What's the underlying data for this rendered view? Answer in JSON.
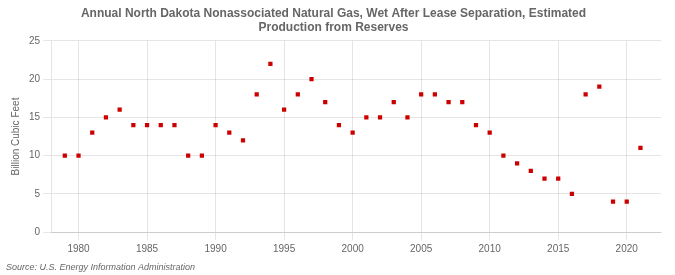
{
  "chart_data": {
    "type": "scatter",
    "title": "Annual North Dakota Nonassociated Natural Gas, Wet After Lease Separation, Estimated\nProduction from Reserves",
    "ylabel": "Billion Cubic Feet",
    "annotation": "Source: U.S. Energy Information Administration",
    "x": [
      1979,
      1980,
      1981,
      1982,
      1983,
      1984,
      1985,
      1986,
      1987,
      1988,
      1989,
      1990,
      1991,
      1992,
      1993,
      1994,
      1995,
      1996,
      1997,
      1998,
      1999,
      2000,
      2001,
      2002,
      2003,
      2004,
      2005,
      2006,
      2007,
      2008,
      2009,
      2010,
      2011,
      2012,
      2013,
      2014,
      2015,
      2016,
      2017,
      2018,
      2019,
      2020,
      2021
    ],
    "values": [
      10,
      10,
      13,
      15,
      16,
      14,
      14,
      14,
      14,
      10,
      10,
      14,
      13,
      12,
      18,
      22,
      16,
      18,
      20,
      17,
      14,
      13,
      15,
      15,
      17,
      15,
      18,
      18,
      17,
      17,
      14,
      13,
      10,
      9,
      8,
      7,
      7,
      5,
      18,
      19,
      4,
      4,
      11
    ],
    "color": "#cc0000",
    "marker": "square",
    "xlim": [
      1978,
      2022.5
    ],
    "ylim": [
      0,
      25
    ],
    "xticks": [
      1980,
      1985,
      1990,
      1995,
      2000,
      2005,
      2010,
      2015,
      2020
    ],
    "yticks": [
      0,
      5,
      10,
      15,
      20,
      25
    ],
    "grid": true
  }
}
